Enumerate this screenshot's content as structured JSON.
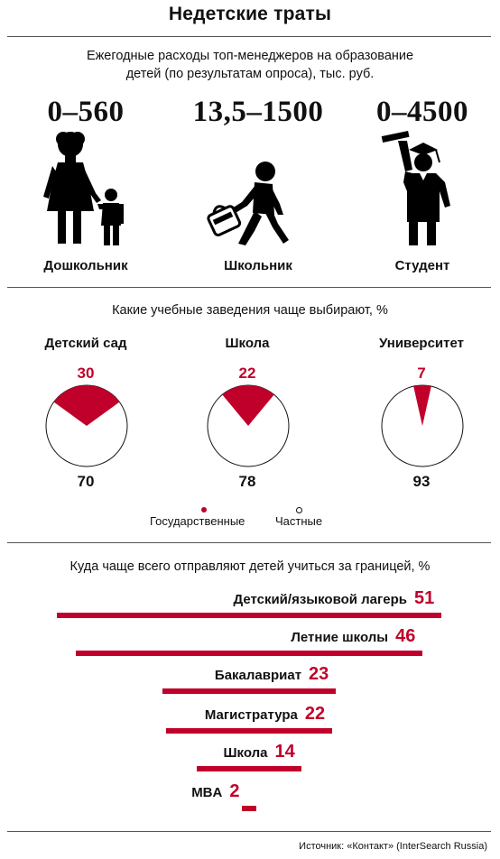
{
  "title": "Недетские траты",
  "subtitle": "Ежегодные расходы топ-менеджеров на образование детей (по результатам опроса), тыс. руб.",
  "spending": [
    {
      "range": "0–560",
      "label": "Дошкольник",
      "icon": "preschooler-icon"
    },
    {
      "range": "13,5–1500",
      "label": "Школьник",
      "icon": "schoolboy-icon"
    },
    {
      "range": "0–4500",
      "label": "Студент",
      "icon": "graduate-student-icon"
    }
  ],
  "pies_title": "Какие учебные заведения чаще выбирают, %",
  "pies": [
    {
      "label": "Детский сад",
      "public": 30,
      "private": 70
    },
    {
      "label": "Школа",
      "public": 22,
      "private": 78
    },
    {
      "label": "Университет",
      "public": 7,
      "private": 93
    }
  ],
  "legend": {
    "public": "Государственные",
    "private": "Частные"
  },
  "bars_title": "Куда чаще всего отправляют детей учиться за границей, %",
  "colors": {
    "accent": "#c0002a",
    "text": "#111111"
  },
  "chart_data": [
    {
      "type": "pie",
      "title": "Какие учебные заведения чаще выбирают, %",
      "categories": [
        "Детский сад",
        "Школа",
        "Университет"
      ],
      "series": [
        {
          "name": "Государственные",
          "values": [
            30,
            22,
            7
          ]
        },
        {
          "name": "Частные",
          "values": [
            70,
            78,
            93
          ]
        }
      ]
    },
    {
      "type": "bar",
      "title": "Куда чаще всего отправляют детей учиться за границей, %",
      "categories": [
        "Детский/языковой лагерь",
        "Летние школы",
        "Бакалавриат",
        "Магистратура",
        "Школа",
        "MBA"
      ],
      "values": [
        51,
        46,
        23,
        22,
        14,
        2
      ]
    }
  ],
  "source": "Источник: «Контакт» (InterSearch Russia)"
}
